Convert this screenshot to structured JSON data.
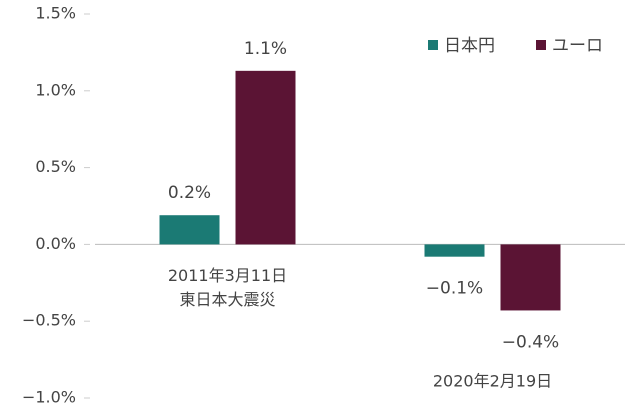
{
  "chart_data": {
    "type": "bar",
    "categories": [
      [
        "2011年3月11日",
        "東日本大震災"
      ],
      [
        "2020年2月19日"
      ]
    ],
    "series": [
      {
        "name": "日本円",
        "color": "#1b7a74",
        "values": [
          0.19,
          -0.08
        ],
        "value_labels": [
          "0.2%",
          "−0.1%"
        ]
      },
      {
        "name": "ユーロ",
        "color": "#5b1434",
        "values": [
          1.13,
          -0.43
        ],
        "value_labels": [
          "1.1%",
          "−0.4%"
        ]
      }
    ],
    "ylim": [
      -1.0,
      1.5
    ],
    "yticks": [
      {
        "value": -1.0,
        "label": "−1.0%"
      },
      {
        "value": -0.5,
        "label": "−0.5%"
      },
      {
        "value": 0.0,
        "label": "0.0%"
      },
      {
        "value": 0.5,
        "label": "0.5%"
      },
      {
        "value": 1.0,
        "label": "1.0%"
      },
      {
        "value": 1.5,
        "label": "1.5%"
      }
    ],
    "legend": "top-right"
  }
}
